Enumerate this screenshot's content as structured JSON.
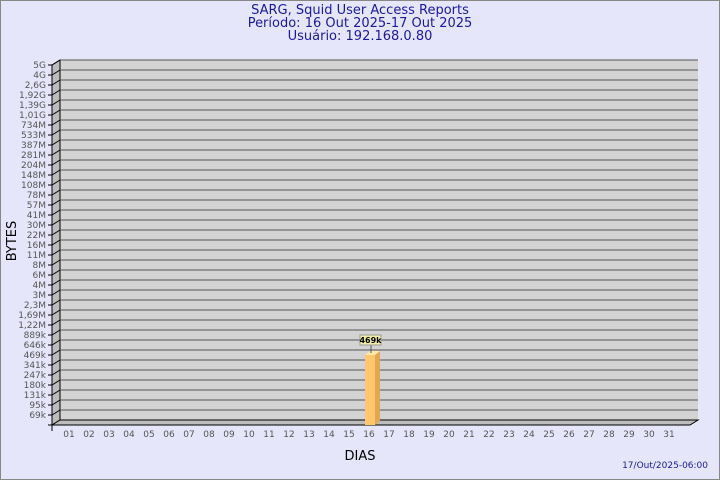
{
  "title": "SARG, Squid User Access Reports",
  "period": "Período: 16 Out 2025-17 Out 2025",
  "user": "Usuário: 192.168.0.80",
  "footer": "17/Out/2025-06:00",
  "chart_data": {
    "type": "bar",
    "xlabel": "DIAS",
    "ylabel": "BYTES",
    "categories": [
      "01",
      "02",
      "03",
      "04",
      "05",
      "06",
      "07",
      "08",
      "09",
      "10",
      "11",
      "12",
      "13",
      "14",
      "15",
      "16",
      "17",
      "18",
      "19",
      "20",
      "21",
      "22",
      "23",
      "24",
      "25",
      "26",
      "27",
      "28",
      "29",
      "30",
      "31"
    ],
    "y_ticks": [
      "5G",
      "4G",
      "2,6G",
      "1,92G",
      "1,39G",
      "1,01G",
      "734M",
      "533M",
      "387M",
      "281M",
      "204M",
      "148M",
      "108M",
      "78M",
      "57M",
      "41M",
      "30M",
      "22M",
      "16M",
      "11M",
      "8M",
      "6M",
      "4M",
      "3M",
      "2,3M",
      "1,69M",
      "1,22M",
      "889k",
      "646k",
      "469k",
      "341k",
      "247k",
      "180k",
      "131k",
      "95k",
      "69k"
    ],
    "y_scale": "log",
    "series": [
      {
        "values": [
          {
            "x": "16",
            "y": "469k",
            "label": "469k"
          }
        ]
      }
    ],
    "grid": true,
    "colors": {
      "bar": "#ffc66e",
      "plot": "#d3d3d3",
      "text": "#1a1aa0"
    }
  }
}
